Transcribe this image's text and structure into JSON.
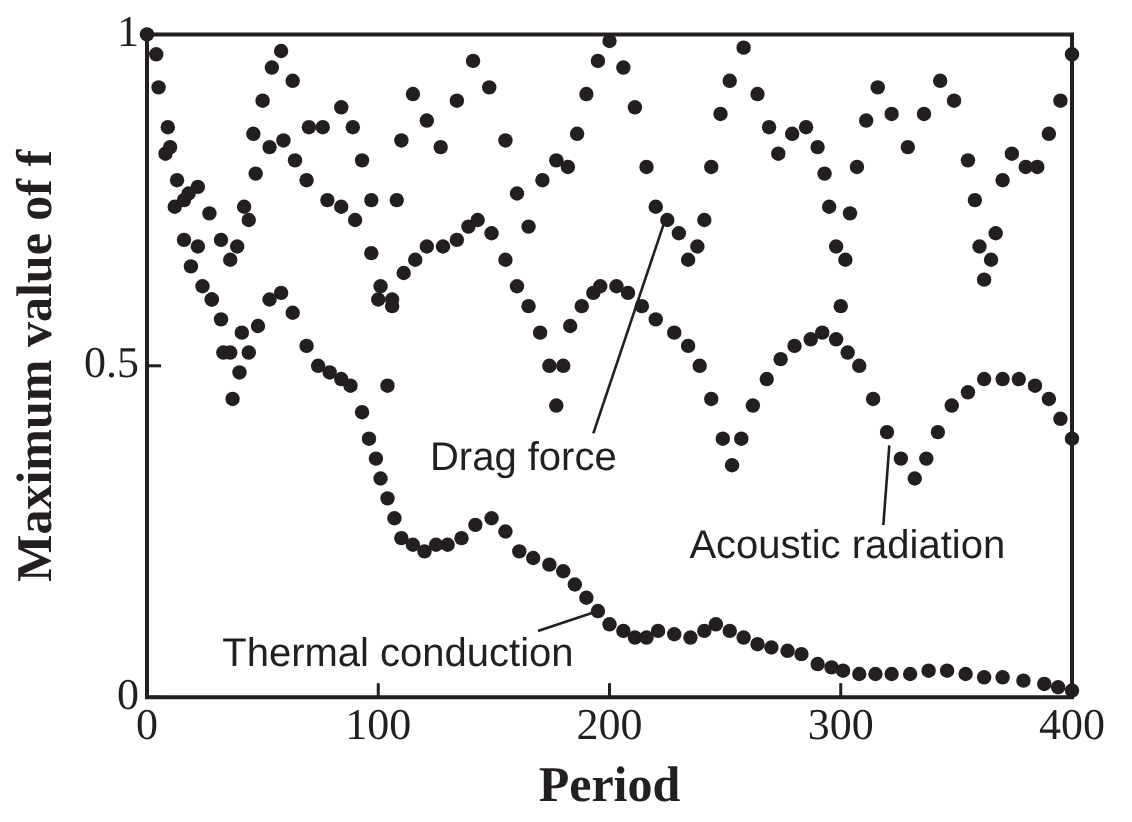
{
  "chart_data": {
    "type": "scatter",
    "xlabel": "Period",
    "ylabel": "Maximum value of f",
    "xlim": [
      0,
      400
    ],
    "xticks": [
      0,
      100,
      200,
      300,
      400
    ],
    "ylim": [
      0,
      1
    ],
    "yticks": [
      0,
      0.5,
      1
    ],
    "grid": false,
    "legend": false,
    "marker": "circle",
    "series": [
      {
        "color": "#231f20",
        "x": [
          0,
          4,
          9,
          16,
          22,
          28,
          33,
          37,
          41,
          44,
          46,
          50,
          54,
          58,
          63,
          70,
          76,
          84,
          89,
          93,
          97,
          100,
          104,
          106,
          108,
          110,
          115,
          121,
          127,
          134,
          141,
          148,
          155,
          160,
          165,
          171,
          177,
          182,
          186,
          190,
          195,
          200,
          206,
          211,
          216,
          220,
          225,
          230,
          234,
          238,
          241,
          244,
          248,
          252,
          258,
          264,
          269,
          273,
          279,
          285,
          290,
          293,
          295,
          298,
          300,
          302,
          304,
          307,
          311,
          316,
          322,
          329,
          336,
          343,
          349,
          355,
          358,
          360,
          362,
          365,
          367,
          370,
          374,
          380,
          385,
          390,
          395,
          400
        ],
        "values": [
          1.0,
          0.97,
          0.86,
          0.75,
          0.68,
          0.6,
          0.52,
          0.45,
          0.55,
          0.72,
          0.85,
          0.9,
          0.95,
          0.975,
          0.93,
          0.86,
          0.86,
          0.89,
          0.86,
          0.81,
          0.75,
          0.6,
          0.47,
          0.6,
          0.75,
          0.84,
          0.91,
          0.87,
          0.83,
          0.9,
          0.96,
          0.92,
          0.84,
          0.76,
          0.71,
          0.78,
          0.81,
          0.8,
          0.85,
          0.91,
          0.96,
          0.99,
          0.95,
          0.89,
          0.8,
          0.74,
          0.72,
          0.7,
          0.66,
          0.68,
          0.72,
          0.8,
          0.88,
          0.93,
          0.98,
          0.91,
          0.86,
          0.82,
          0.85,
          0.86,
          0.83,
          0.79,
          0.74,
          0.68,
          0.59,
          0.66,
          0.73,
          0.8,
          0.87,
          0.92,
          0.88,
          0.83,
          0.88,
          0.93,
          0.9,
          0.81,
          0.75,
          0.68,
          0.63,
          0.66,
          0.7,
          0.78,
          0.82,
          0.8,
          0.8,
          0.85,
          0.9,
          0.97
        ]
      },
      {
        "color": "#231f20",
        "x": [
          5,
          10,
          13,
          18,
          22,
          27,
          32,
          36,
          39,
          42,
          47,
          53,
          59,
          64,
          69,
          78,
          84,
          90,
          97,
          101,
          106,
          111,
          116,
          121,
          128,
          134,
          139,
          143,
          149,
          155,
          160,
          165,
          170,
          174,
          177,
          180,
          183,
          188,
          193,
          196,
          203,
          208,
          214,
          220,
          228,
          234,
          239,
          244,
          249,
          253,
          257,
          262,
          268,
          274,
          280,
          287,
          292,
          298,
          303,
          308,
          314,
          320,
          326,
          332,
          337,
          342,
          348,
          355,
          362,
          370,
          377,
          384,
          390,
          395,
          400
        ],
        "values": [
          0.92,
          0.83,
          0.78,
          0.76,
          0.77,
          0.73,
          0.69,
          0.66,
          0.68,
          0.74,
          0.79,
          0.83,
          0.84,
          0.81,
          0.78,
          0.75,
          0.74,
          0.72,
          0.67,
          0.62,
          0.59,
          0.64,
          0.66,
          0.68,
          0.68,
          0.69,
          0.71,
          0.72,
          0.7,
          0.66,
          0.62,
          0.59,
          0.55,
          0.5,
          0.44,
          0.5,
          0.56,
          0.59,
          0.61,
          0.62,
          0.62,
          0.61,
          0.59,
          0.57,
          0.55,
          0.53,
          0.5,
          0.45,
          0.39,
          0.35,
          0.39,
          0.44,
          0.48,
          0.51,
          0.53,
          0.54,
          0.55,
          0.54,
          0.52,
          0.5,
          0.45,
          0.4,
          0.36,
          0.33,
          0.36,
          0.4,
          0.44,
          0.46,
          0.48,
          0.48,
          0.48,
          0.47,
          0.45,
          0.42,
          0.39
        ]
      },
      {
        "color": "#231f20",
        "x": [
          8,
          12,
          16,
          19,
          24,
          28,
          32,
          36,
          40,
          44,
          48,
          53,
          58,
          63,
          69,
          74,
          79,
          84,
          88,
          93,
          96,
          99,
          101,
          104,
          107,
          110,
          115,
          120,
          125,
          130,
          136,
          142,
          149,
          155,
          161,
          167,
          174,
          180,
          185,
          190,
          195,
          200,
          206,
          211,
          216,
          221,
          228,
          235,
          241,
          246,
          252,
          258,
          264,
          270,
          277,
          283,
          290,
          296,
          301,
          308,
          315,
          322,
          330,
          338,
          346,
          354,
          362,
          370,
          379,
          388,
          394,
          400
        ],
        "values": [
          0.82,
          0.74,
          0.69,
          0.65,
          0.62,
          0.6,
          0.57,
          0.52,
          0.49,
          0.52,
          0.56,
          0.6,
          0.61,
          0.58,
          0.53,
          0.5,
          0.49,
          0.48,
          0.47,
          0.43,
          0.39,
          0.36,
          0.33,
          0.3,
          0.27,
          0.24,
          0.23,
          0.22,
          0.23,
          0.23,
          0.24,
          0.26,
          0.27,
          0.25,
          0.22,
          0.21,
          0.2,
          0.19,
          0.17,
          0.15,
          0.13,
          0.11,
          0.1,
          0.09,
          0.09,
          0.1,
          0.095,
          0.09,
          0.1,
          0.11,
          0.1,
          0.09,
          0.08,
          0.075,
          0.07,
          0.065,
          0.05,
          0.045,
          0.04,
          0.035,
          0.035,
          0.035,
          0.035,
          0.04,
          0.04,
          0.035,
          0.03,
          0.03,
          0.025,
          0.02,
          0.015,
          0.01
        ]
      }
    ],
    "annotations": [
      {
        "text": "Drag force",
        "x": 225,
        "y": 0.73
      },
      {
        "text": "Acoustic radiation",
        "x": 321,
        "y": 0.38
      },
      {
        "text": "Thermal conduction",
        "x": 195,
        "y": 0.13
      }
    ]
  }
}
